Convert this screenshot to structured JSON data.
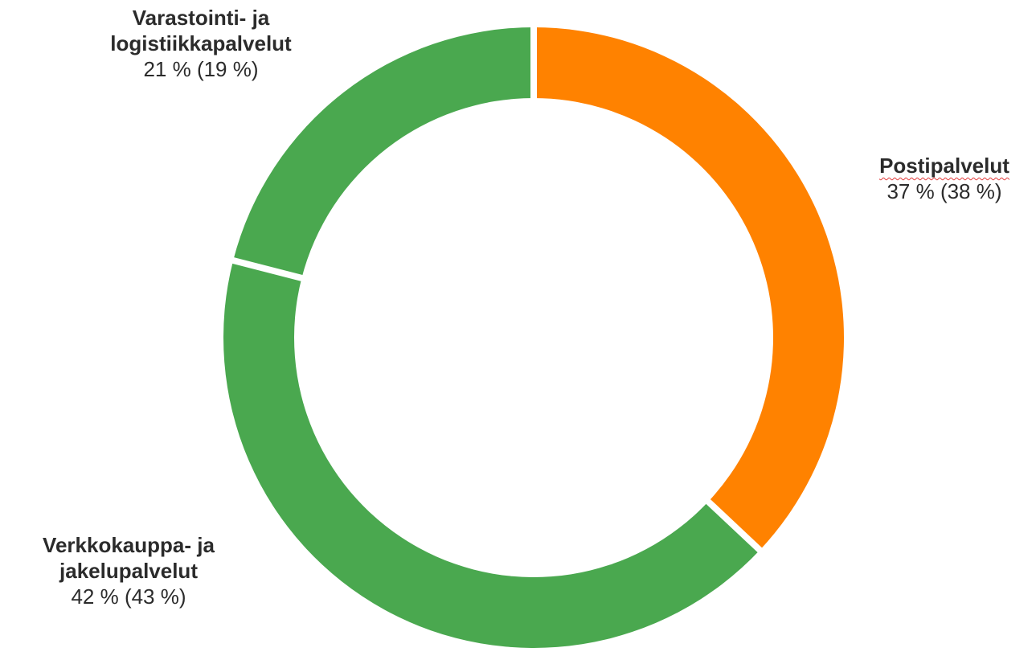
{
  "chart_data": {
    "type": "pie",
    "style": "donut",
    "slices": [
      {
        "key": "postipalvelut",
        "name_lines": [
          "Postipalvelut"
        ],
        "value": 37,
        "value_text": "37 % (38 %)",
        "previous_value": 38,
        "color": "#ff8200"
      },
      {
        "key": "verkkokauppa",
        "name_lines": [
          "Verkkokauppa- ja",
          "jakelupalvelut"
        ],
        "value": 42,
        "value_text": "42 % (43 %)",
        "previous_value": 43,
        "color": "#4aa84f"
      },
      {
        "key": "varastointi",
        "name_lines": [
          "Varastointi- ja",
          "logistiikkapalvelut"
        ],
        "value": 21,
        "value_text": "21 % (19 %)",
        "previous_value": 19,
        "color": "#4aa84f"
      }
    ],
    "start_angle_deg": 0,
    "direction": "clockwise",
    "separator_color": "#ffffff"
  }
}
